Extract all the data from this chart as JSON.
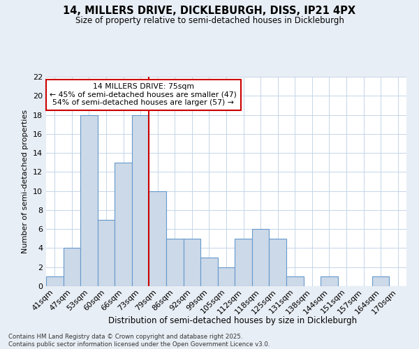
{
  "title_line1": "14, MILLERS DRIVE, DICKLEBURGH, DISS, IP21 4PX",
  "title_line2": "Size of property relative to semi-detached houses in Dickleburgh",
  "xlabel": "Distribution of semi-detached houses by size in Dickleburgh",
  "ylabel": "Number of semi-detached properties",
  "footnote": "Contains HM Land Registry data © Crown copyright and database right 2025.\nContains public sector information licensed under the Open Government Licence v3.0.",
  "bin_labels": [
    "41sqm",
    "47sqm",
    "53sqm",
    "60sqm",
    "66sqm",
    "73sqm",
    "79sqm",
    "86sqm",
    "92sqm",
    "99sqm",
    "105sqm",
    "112sqm",
    "118sqm",
    "125sqm",
    "131sqm",
    "138sqm",
    "144sqm",
    "151sqm",
    "157sqm",
    "164sqm",
    "170sqm"
  ],
  "bar_values": [
    1,
    4,
    18,
    7,
    13,
    18,
    10,
    5,
    5,
    3,
    2,
    5,
    6,
    5,
    1,
    0,
    1,
    0,
    0,
    1,
    0
  ],
  "bar_color": "#ccd9e8",
  "bar_edge_color": "#6699cc",
  "vline_index": 6,
  "vline_color": "#cc0000",
  "annotation_title": "14 MILLERS DRIVE: 75sqm",
  "annotation_line1": "← 45% of semi-detached houses are smaller (47)",
  "annotation_line2": "54% of semi-detached houses are larger (57) →",
  "annotation_box_color": "#ffffff",
  "annotation_box_edge": "#cc0000",
  "ylim": [
    0,
    22
  ],
  "yticks": [
    0,
    2,
    4,
    6,
    8,
    10,
    12,
    14,
    16,
    18,
    20,
    22
  ],
  "bg_color": "#e8eef5",
  "plot_bg_color": "#ffffff",
  "grid_color": "#c5d5e8"
}
